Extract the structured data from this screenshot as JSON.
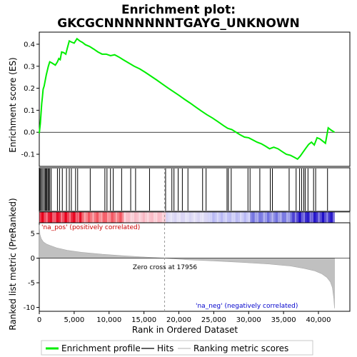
{
  "chart_data": {
    "type": "line",
    "title": "Enrichment plot:\nGKCGCNNNNNNNTGAYG_UNKNOWN",
    "title_lines": [
      "Enrichment plot:",
      "GKCGCNNNNNNNTGAYG_UNKNOWN"
    ],
    "xlabel": "Rank in Ordered Dataset",
    "top_panel": {
      "ylabel": "Enrichment score (ES)",
      "xlim": [
        0,
        44500
      ],
      "ylim": [
        -0.155,
        0.455
      ],
      "yticks": [
        -0.1,
        0.0,
        0.1,
        0.2,
        0.3,
        0.4
      ],
      "ytick_labels": [
        "-0.1",
        "0.0",
        "0.1",
        "0.2",
        "0.3",
        "0.4"
      ],
      "series": [
        {
          "name": "Enrichment profile",
          "color": "#00ee00",
          "x": [
            0,
            150,
            250,
            350,
            450,
            550,
            700,
            850,
            1000,
            1150,
            1300,
            1500,
            1800,
            2300,
            2600,
            2800,
            3000,
            3200,
            3500,
            3800,
            4000,
            4300,
            4600,
            5000,
            5400,
            5800,
            6200,
            6600,
            7200,
            7800,
            8400,
            9000,
            9600,
            10200,
            10800,
            11400,
            12000,
            12800,
            13600,
            14400,
            15200,
            16000,
            16800,
            17600,
            18400,
            19200,
            20000,
            20800,
            21600,
            22400,
            23200,
            24000,
            24800,
            25600,
            26400,
            27000,
            27600,
            28200,
            28800,
            29400,
            30000,
            30600,
            31200,
            31800,
            32400,
            33000,
            33600,
            34200,
            34800,
            35400,
            36000,
            36600,
            37000,
            37400,
            37800,
            38200,
            38600,
            39000,
            39400,
            39800,
            40200,
            40600,
            41000,
            41400,
            41800,
            42300
          ],
          "y": [
            -0.005,
            0.04,
            0.085,
            0.13,
            0.16,
            0.195,
            0.21,
            0.235,
            0.26,
            0.28,
            0.3,
            0.32,
            0.315,
            0.305,
            0.32,
            0.335,
            0.33,
            0.365,
            0.362,
            0.355,
            0.38,
            0.415,
            0.41,
            0.405,
            0.425,
            0.415,
            0.408,
            0.398,
            0.39,
            0.378,
            0.365,
            0.355,
            0.355,
            0.348,
            0.352,
            0.342,
            0.33,
            0.315,
            0.3,
            0.288,
            0.272,
            0.255,
            0.238,
            0.22,
            0.202,
            0.185,
            0.168,
            0.15,
            0.133,
            0.115,
            0.097,
            0.08,
            0.065,
            0.048,
            0.03,
            0.018,
            0.012,
            0.0,
            -0.012,
            -0.022,
            -0.025,
            -0.035,
            -0.045,
            -0.052,
            -0.063,
            -0.075,
            -0.068,
            -0.075,
            -0.088,
            -0.1,
            -0.105,
            -0.115,
            -0.122,
            -0.108,
            -0.09,
            -0.072,
            -0.055,
            -0.045,
            -0.058,
            -0.025,
            -0.03,
            -0.04,
            -0.05,
            0.02,
            0.01,
            0.0
          ]
        }
      ]
    },
    "hits": {
      "name": "Hits",
      "positions": [
        60,
        180,
        320,
        500,
        700,
        850,
        980,
        1100,
        1250,
        1350,
        1500,
        1700,
        2600,
        2900,
        3300,
        3900,
        4300,
        4600,
        5200,
        5500,
        7300,
        9400,
        9700,
        10200,
        10600,
        11800,
        13100,
        13800,
        15800,
        18100,
        19000,
        19300,
        19900,
        20500,
        21300,
        23400,
        23900,
        26900,
        27100,
        27500,
        29900,
        30200,
        31600,
        33100,
        33400,
        35800,
        36800,
        37300,
        37600,
        37900,
        38100,
        38500,
        39300,
        39600,
        41300
      ]
    },
    "heatmap_bar": {
      "colors": [
        "#e8001c",
        "#f3545f",
        "#f9b8c4",
        "#d8d4f4",
        "#b8b8f4",
        "#7070e0",
        "#2010c8"
      ]
    },
    "bottom_panel": {
      "ylabel": "Ranked list metric (PreRanked)",
      "ylim": [
        -10.8,
        7.2
      ],
      "yticks": [
        5,
        0,
        -5,
        -10
      ],
      "ytick_labels": [
        "5",
        "0",
        "-5",
        "-10"
      ],
      "metric_profile": {
        "name": "Ranking metric scores",
        "x": [
          0,
          100,
          300,
          600,
          1000,
          1500,
          2500,
          4000,
          6000,
          9000,
          12000,
          15000,
          17956,
          21000,
          25000,
          29000,
          33000,
          36000,
          38000,
          39500,
          40500,
          41200,
          41700,
          42000,
          42200,
          42300
        ],
        "y": [
          6.8,
          4.8,
          3.9,
          3.3,
          2.9,
          2.6,
          2.1,
          1.6,
          1.2,
          0.8,
          0.5,
          0.25,
          0.0,
          -0.3,
          -0.55,
          -0.85,
          -1.2,
          -1.6,
          -2.1,
          -2.6,
          -3.2,
          -3.9,
          -4.8,
          -6.0,
          -8.2,
          -10.2
        ]
      },
      "zero_cross_label": "Zero cross at 17956",
      "zero_cross": 17956,
      "pos_label": "'na_pos' (positively correlated)",
      "neg_label": "'na_neg' (negatively correlated)"
    },
    "xticks": [
      0,
      5000,
      10000,
      15000,
      20000,
      25000,
      30000,
      35000,
      40000
    ],
    "xtick_labels": [
      "0",
      "5,000",
      "10,000",
      "15,000",
      "20,000",
      "25,000",
      "30,000",
      "35,000",
      "40,000"
    ],
    "legend": {
      "placement": "bottom",
      "entries": [
        {
          "label": "Enrichment profile",
          "color": "#00ee00"
        },
        {
          "label": "Hits",
          "color": "#000000"
        },
        {
          "label": "Ranking metric scores",
          "color": "#c0c0c0"
        }
      ]
    },
    "colors": {
      "profile": "#00ee00",
      "metric_fill": "#c0c0c0",
      "pos_text": "#cc0000",
      "neg_text": "#0000cc"
    }
  }
}
